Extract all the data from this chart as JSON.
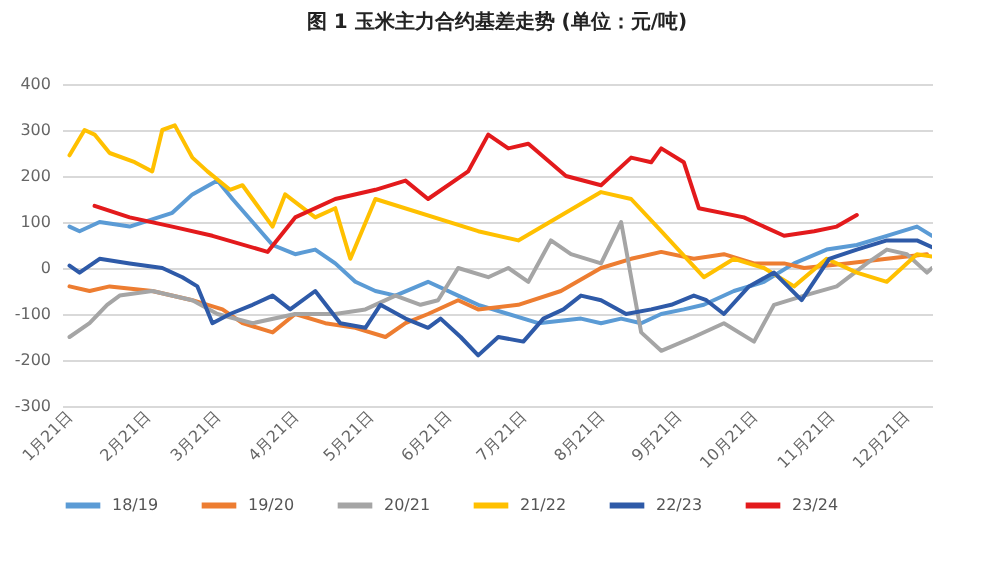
{
  "chart_data": {
    "type": "line",
    "title": "图 1  玉米主力合约基差走势   (单位：元/吨)",
    "xlim": [
      "--01-18",
      "--12-31"
    ],
    "xticks": [
      {
        "value": "--01-21",
        "label": "1月21日"
      },
      {
        "value": "--02-21",
        "label": "2月21日"
      },
      {
        "value": "--03-21",
        "label": "3月21日"
      },
      {
        "value": "--04-21",
        "label": "4月21日"
      },
      {
        "value": "--05-21",
        "label": "5月21日"
      },
      {
        "value": "--06-21",
        "label": "6月21日"
      },
      {
        "value": "--07-21",
        "label": "7月21日"
      },
      {
        "value": "--08-21",
        "label": "8月21日"
      },
      {
        "value": "--09-21",
        "label": "9月21日"
      },
      {
        "value": "--10-21",
        "label": "10月21日"
      },
      {
        "value": "--11-21",
        "label": "11月21日"
      },
      {
        "value": "--12-21",
        "label": "12月21日"
      }
    ],
    "ylim": [
      -300,
      400
    ],
    "yticks": [
      -300,
      -200,
      -100,
      0,
      100,
      200,
      300,
      400
    ],
    "grid": "y",
    "legend": "bottom",
    "series": [
      {
        "name": "18/19",
        "color": "#5b9bd5",
        "x": [
          "--01-21",
          "--01-25",
          "--02-02",
          "--02-14",
          "--03-03",
          "--03-11",
          "--03-21",
          "--03-27",
          "--04-04",
          "--04-12",
          "--04-21",
          "--04-29",
          "--05-07",
          "--05-15",
          "--05-23",
          "--05-31",
          "--06-13",
          "--06-25",
          "--07-03",
          "--07-15",
          "--07-27",
          "--08-13",
          "--08-21",
          "--08-29",
          "--09-06",
          "--09-14",
          "--09-23",
          "--10-01",
          "--10-13",
          "--10-25",
          "--11-06",
          "--11-19",
          "--12-01",
          "--12-13",
          "--12-25",
          "--12-31"
        ],
        "values": [
          90,
          80,
          100,
          90,
          120,
          160,
          190,
          150,
          100,
          50,
          30,
          40,
          10,
          -30,
          -50,
          -60,
          -30,
          -60,
          -80,
          -100,
          -120,
          -110,
          -120,
          -110,
          -120,
          -100,
          -90,
          -80,
          -50,
          -30,
          10,
          40,
          50,
          70,
          90,
          70
        ]
      },
      {
        "name": "19/20",
        "color": "#ed7d31",
        "x": [
          "--01-21",
          "--01-29",
          "--02-06",
          "--02-23",
          "--03-11",
          "--03-23",
          "--03-31",
          "--04-12",
          "--04-21",
          "--05-03",
          "--05-15",
          "--05-27",
          "--06-04",
          "--06-13",
          "--06-25",
          "--07-03",
          "--07-19",
          "--08-05",
          "--08-21",
          "--09-02",
          "--09-14",
          "--09-27",
          "--10-09",
          "--10-21",
          "--11-02",
          "--11-10",
          "--11-27",
          "--12-13",
          "--12-29"
        ],
        "values": [
          -40,
          -50,
          -40,
          -50,
          -70,
          -90,
          -120,
          -140,
          -100,
          -120,
          -130,
          -150,
          -120,
          -100,
          -70,
          -90,
          -80,
          -50,
          0,
          20,
          35,
          20,
          30,
          10,
          10,
          0,
          10,
          20,
          30
        ]
      },
      {
        "name": "20/21",
        "color": "#a5a5a5",
        "x": [
          "--01-21",
          "--01-29",
          "--02-05",
          "--02-10",
          "--02-23",
          "--03-11",
          "--03-21",
          "--04-04",
          "--04-21",
          "--05-07",
          "--05-19",
          "--05-31",
          "--06-10",
          "--06-17",
          "--06-25",
          "--07-07",
          "--07-15",
          "--07-23",
          "--08-01",
          "--08-09",
          "--08-21",
          "--08-29",
          "--09-06",
          "--09-14",
          "--09-27",
          "--10-09",
          "--10-21",
          "--10-29",
          "--11-10",
          "--11-23",
          "--12-05",
          "--12-13",
          "--12-21",
          "--12-29",
          "--12-31"
        ],
        "values": [
          -150,
          -120,
          -80,
          -60,
          -50,
          -70,
          -100,
          -120,
          -100,
          -100,
          -90,
          -60,
          -80,
          -70,
          0,
          -20,
          0,
          -30,
          60,
          30,
          10,
          100,
          -140,
          -180,
          -150,
          -120,
          -160,
          -80,
          -60,
          -40,
          10,
          40,
          30,
          -10,
          0
        ]
      },
      {
        "name": "21/22",
        "color": "#ffc000",
        "x": [
          "--01-21",
          "--01-27",
          "--01-31",
          "--02-06",
          "--02-16",
          "--02-23",
          "--02-27",
          "--03-04",
          "--03-11",
          "--03-17",
          "--03-26",
          "--03-31",
          "--04-12",
          "--04-17",
          "--04-29",
          "--05-07",
          "--05-13",
          "--05-23",
          "--07-03",
          "--07-19",
          "--08-21",
          "--09-02",
          "--09-14",
          "--10-01",
          "--10-13",
          "--10-25",
          "--11-06",
          "--11-19",
          "--12-01",
          "--12-13",
          "--12-25",
          "--12-31"
        ],
        "values": [
          245,
          300,
          290,
          250,
          230,
          210,
          300,
          310,
          240,
          210,
          170,
          180,
          90,
          160,
          110,
          130,
          20,
          150,
          80,
          60,
          165,
          150,
          80,
          -20,
          20,
          0,
          -40,
          20,
          -10,
          -30,
          30,
          25
        ]
      },
      {
        "name": "22/23",
        "color": "#2e5aa8",
        "x": [
          "--01-21",
          "--01-25",
          "--02-02",
          "--02-14",
          "--02-27",
          "--03-07",
          "--03-13",
          "--03-19",
          "--03-26",
          "--04-04",
          "--04-12",
          "--04-19",
          "--04-29",
          "--05-09",
          "--05-19",
          "--05-25",
          "--06-04",
          "--06-13",
          "--06-18",
          "--06-26",
          "--07-03",
          "--07-11",
          "--07-21",
          "--07-29",
          "--08-06",
          "--08-13",
          "--08-21",
          "--08-31",
          "--09-10",
          "--09-18",
          "--09-27",
          "--10-02",
          "--10-09",
          "--10-19",
          "--10-29",
          "--11-09",
          "--11-20",
          "--12-01",
          "--12-13",
          "--12-25",
          "--12-31"
        ],
        "values": [
          5,
          -10,
          20,
          10,
          0,
          -20,
          -40,
          -120,
          -100,
          -80,
          -60,
          -90,
          -50,
          -120,
          -130,
          -80,
          -110,
          -130,
          -110,
          -150,
          -190,
          -150,
          -160,
          -110,
          -90,
          -60,
          -70,
          -100,
          -90,
          -80,
          -60,
          -70,
          -100,
          -40,
          -10,
          -70,
          20,
          40,
          60,
          60,
          45
        ]
      },
      {
        "name": "23/24",
        "color": "#e31a1c",
        "x": [
          "--01-31",
          "--02-14",
          "--03-03",
          "--03-19",
          "--04-10",
          "--04-21",
          "--05-07",
          "--05-23",
          "--06-04",
          "--06-13",
          "--06-29",
          "--07-07",
          "--07-15",
          "--07-23",
          "--08-07",
          "--08-21",
          "--09-02",
          "--09-10",
          "--09-14",
          "--09-23",
          "--09-29",
          "--10-17",
          "--11-02",
          "--11-14",
          "--11-23",
          "--12-01"
        ],
        "values": [
          135,
          110,
          90,
          70,
          35,
          110,
          150,
          170,
          190,
          150,
          210,
          290,
          260,
          270,
          200,
          180,
          240,
          230,
          260,
          230,
          130,
          110,
          70,
          80,
          90,
          115
        ]
      }
    ]
  }
}
